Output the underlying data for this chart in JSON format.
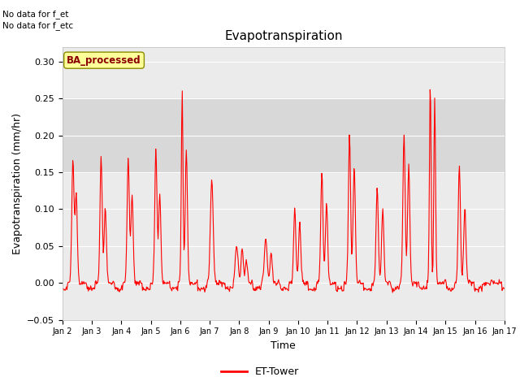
{
  "title": "Evapotranspiration",
  "xlabel": "Time",
  "ylabel": "Evapotranspiration (mm/hr)",
  "ylim": [
    -0.05,
    0.32
  ],
  "yticks": [
    -0.05,
    0.0,
    0.05,
    0.1,
    0.15,
    0.2,
    0.25,
    0.3
  ],
  "line_color": "#FF0000",
  "line_width": 0.8,
  "bg_color": "#FFFFFF",
  "plot_bg_color": "#EBEBEB",
  "shaded_region": [
    0.15,
    0.25
  ],
  "shaded_color": "#D8D8D8",
  "text_annotations": [
    "No data for f_et",
    "No data for f_etc"
  ],
  "box_label": "BA_processed",
  "box_label_color": "#8B0000",
  "box_bg_color": "#FFFF99",
  "box_border_color": "#8B8B00",
  "legend_label": "ET-Tower",
  "x_tick_labels": [
    "Jan 2",
    "Jan 3",
    "Jan 4",
    "Jan 5",
    "Jan 6",
    "Jan 7",
    "Jan 8",
    "Jan 9",
    "Jan 10",
    "Jan 11",
    "Jan 12",
    "Jan 13",
    "Jan 14",
    "Jan 15",
    "Jan 16",
    "Jan 17"
  ],
  "num_days": 16,
  "points_per_day": 48
}
